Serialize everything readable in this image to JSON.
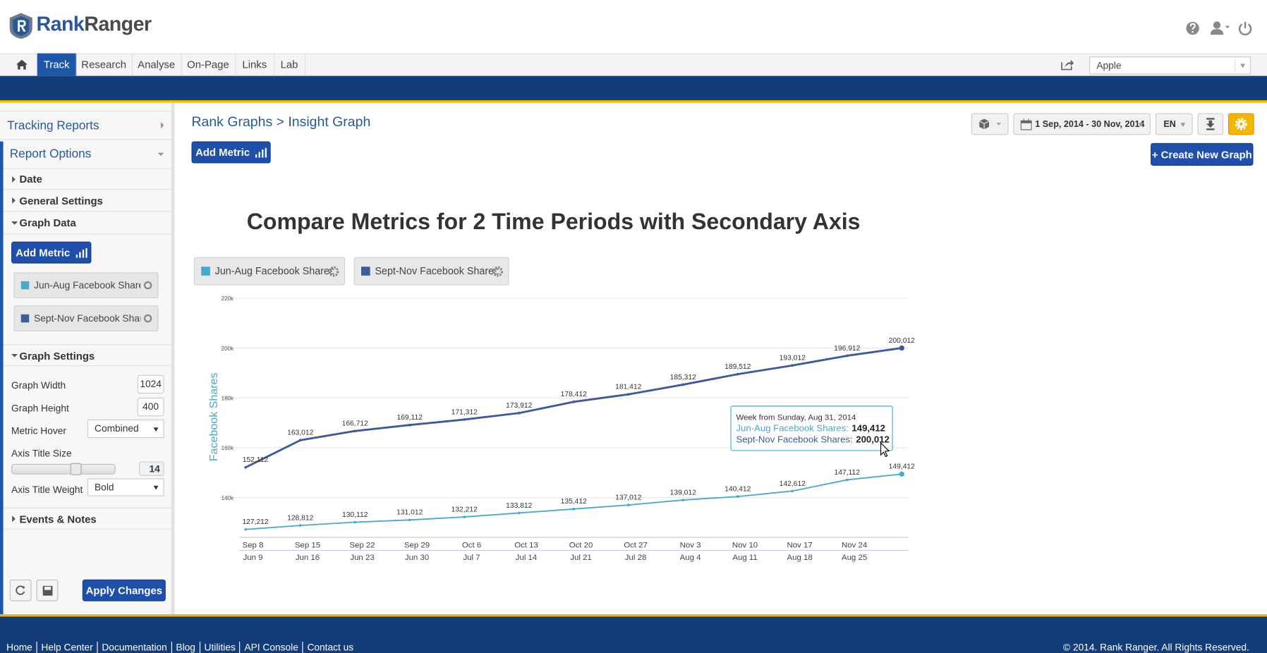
{
  "header": {
    "logo_first": "Rank",
    "logo_second": "Ranger"
  },
  "nav": {
    "tabs": [
      "Track",
      "Research",
      "Analyse",
      "On-Page",
      "Links",
      "Lab"
    ],
    "project": "Apple"
  },
  "sidebar": {
    "tracking_reports": "Tracking Reports",
    "report_options": "Report Options",
    "date": "Date",
    "general_settings": "General Settings",
    "graph_data": "Graph Data",
    "add_metric": "Add Metric",
    "graph_settings": "Graph Settings",
    "graph_width_label": "Graph Width",
    "graph_width": 1024,
    "graph_height_label": "Graph Height",
    "graph_height": 400,
    "metric_hover_label": "Metric Hover",
    "metric_hover": "Combined",
    "axis_title_size_label": "Axis Title Size",
    "axis_title_size": 14,
    "axis_title_weight_label": "Axis Title Weight",
    "axis_title_weight": "Bold",
    "events_notes": "Events & Notes",
    "apply_changes": "Apply Changes"
  },
  "main": {
    "breadcrumb": "Rank Graphs > Insight Graph",
    "add_metric": "Add Metric",
    "date_range": "1 Sep, 2014 - 30 Nov, 2014",
    "language": "EN",
    "create_graph": "+ Create New Graph"
  },
  "chart_data": {
    "type": "line",
    "title": "Compare Metrics for 2 Time Periods with Secondary Axis",
    "y_label": "Facebook Shares",
    "categories": [
      "Sep 8",
      "Sep 15",
      "Sep 22",
      "Sep 29",
      "Oct 6",
      "Oct 13",
      "Oct 20",
      "Oct 27",
      "Nov 3",
      "Nov 10",
      "Nov 17",
      "Nov 24",
      null
    ],
    "secondary_categories": [
      "Jun 9",
      "Jun 16",
      "Jun 23",
      "Jun 30",
      "Jul 7",
      "Jul 14",
      "Jul 21",
      "Jul 28",
      "Aug 4",
      "Aug 11",
      "Aug 18",
      "Aug 25",
      null
    ],
    "series": [
      {
        "name": "Jun-Aug Facebook Shares",
        "color": "#4aa8c9",
        "values": [
          127212,
          128812,
          130112,
          131012,
          132212,
          133812,
          135412,
          137012,
          139012,
          140412,
          142612,
          147112,
          149412
        ],
        "value_labels": [
          "127,212",
          "128,812",
          "130,112",
          "131,012",
          "132,212",
          "133,812",
          "135,412",
          "137,012",
          "139,012",
          "140,412",
          "142,612",
          "147,112",
          "149,412"
        ]
      },
      {
        "name": "Sept-Nov Facebook Shares",
        "color": "#3d5a99",
        "values": [
          152112,
          163012,
          166712,
          169112,
          171312,
          173912,
          178412,
          181412,
          185312,
          189512,
          193012,
          196912,
          200012
        ],
        "value_labels": [
          "152,112",
          "163,012",
          "166,712",
          "169,112",
          "171,312",
          "173,912",
          "178,412",
          "181,412",
          "185,312",
          "189,512",
          "193,012",
          "196,912",
          "200,012"
        ]
      }
    ],
    "ylim": [
      124000,
      220000
    ],
    "yticks": [
      {
        "value": 140000,
        "label": "140k"
      },
      {
        "value": 160000,
        "label": "160k"
      },
      {
        "value": 180000,
        "label": "180k"
      },
      {
        "value": 200000,
        "label": "200k"
      },
      {
        "value": 220000,
        "label": "220k"
      }
    ],
    "grid": true,
    "tooltip": {
      "title": "Week from Sunday, Aug 31, 2014",
      "rows": [
        {
          "label": "Jun-Aug Facebook Shares:",
          "value": "149,412"
        },
        {
          "label": "Sept-Nov Facebook Shares:",
          "value": "200,012"
        }
      ]
    }
  },
  "footer": {
    "links": [
      "Home",
      "Help Center",
      "Documentation",
      "Blog",
      "Utilities",
      "API Console",
      "Contact us"
    ],
    "copyright": "© 2014. Rank Ranger. All Rights Reserved."
  }
}
